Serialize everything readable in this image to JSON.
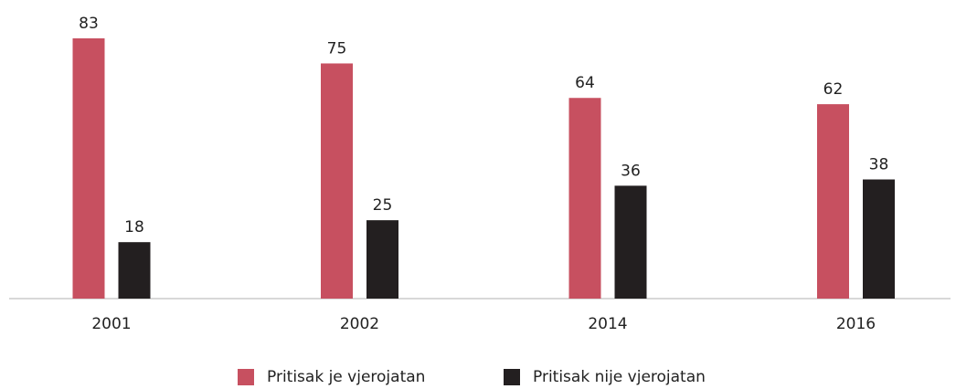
{
  "chart_data": {
    "type": "bar",
    "categories": [
      "2001",
      "2002",
      "2014",
      "2016"
    ],
    "series": [
      {
        "name": "Pritisak je vjerojatan",
        "color": "#c75060",
        "values": [
          83,
          75,
          64,
          62
        ]
      },
      {
        "name": "Pritisak nije vjerojatan",
        "color": "#231f20",
        "values": [
          18,
          25,
          36,
          38
        ]
      }
    ],
    "legend": "bottom"
  }
}
